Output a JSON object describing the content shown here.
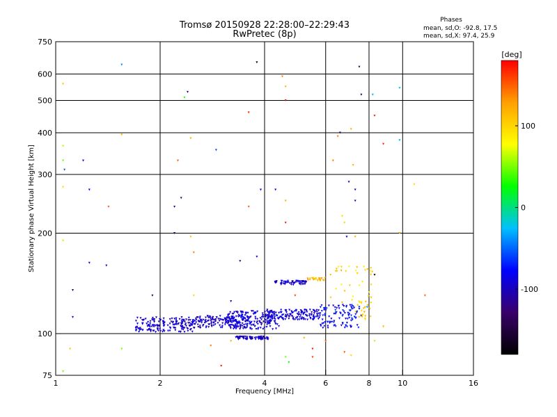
{
  "chart_data": {
    "type": "scatter",
    "title": "Tromsø 20150928 22:28:00–22:29:43",
    "subtitle": "RwPretec (8p)",
    "xlabel": "Frequency [MHz]",
    "ylabel": "Stationary phase Virtual Height [km]",
    "x_scale": "log",
    "y_scale": "log",
    "xlim": [
      1,
      16
    ],
    "ylim": [
      75,
      750
    ],
    "x_ticks": [
      1,
      2,
      4,
      6,
      8,
      10,
      16
    ],
    "x_tick_labels": [
      "1",
      "2",
      "4",
      "6",
      "8",
      "10",
      "16"
    ],
    "y_ticks": [
      75,
      100,
      200,
      300,
      400,
      500,
      600,
      750
    ],
    "y_tick_labels": [
      "75",
      "100",
      "200",
      "300",
      "400",
      "500",
      "600",
      "750"
    ],
    "grid": true,
    "stats": {
      "heading": "Phases",
      "line_o": "mean, sd,O: -92.8, 17.5",
      "line_x": "mean, sd,X:  97.4, 25.9"
    },
    "colorbar": {
      "label": "[deg]",
      "range": [
        -180,
        180
      ],
      "ticks": [
        100,
        0,
        -100
      ],
      "tick_labels": [
        "100",
        "0",
        "-100"
      ],
      "colors": [
        "#000000",
        "#3a006a",
        "#0000ff",
        "#00c0ff",
        "#00ff00",
        "#ffff00",
        "#ffa000",
        "#ff0000"
      ]
    },
    "clusters": [
      {
        "x_range": [
          1.7,
          2.5
        ],
        "y_range": [
          101,
          112
        ],
        "phase": -95,
        "count": 170
      },
      {
        "x_range": [
          2.5,
          3.6
        ],
        "y_range": [
          104,
          113
        ],
        "phase": -95,
        "count": 150
      },
      {
        "x_range": [
          3.1,
          4.4
        ],
        "y_range": [
          103,
          117
        ],
        "phase": -92,
        "count": 170
      },
      {
        "x_range": [
          4.0,
          5.8
        ],
        "y_range": [
          110,
          118
        ],
        "phase": -90,
        "count": 150
      },
      {
        "x_range": [
          5.8,
          7.6
        ],
        "y_range": [
          104,
          122
        ],
        "phase": -80,
        "count": 100
      },
      {
        "x_range": [
          3.3,
          4.1
        ],
        "y_range": [
          96,
          98
        ],
        "phase": -100,
        "count": 70
      },
      {
        "x_range": [
          4.2,
          5.3
        ],
        "y_range": [
          140,
          144
        ],
        "phase": -95,
        "count": 60
      },
      {
        "x_range": [
          5.3,
          6.0
        ],
        "y_range": [
          144,
          147
        ],
        "phase": 115,
        "count": 25
      },
      {
        "x_range": [
          6.2,
          8.2
        ],
        "y_range": [
          120,
          160
        ],
        "phase": 100,
        "count": 35
      },
      {
        "x_range": [
          7.3,
          8.1
        ],
        "y_range": [
          110,
          125
        ],
        "phase": 110,
        "count": 20
      }
    ],
    "points": [
      [
        1.05,
        560,
        110
      ],
      [
        1.05,
        365,
        60
      ],
      [
        1.05,
        330,
        45
      ],
      [
        1.06,
        310,
        -55
      ],
      [
        1.05,
        275,
        100
      ],
      [
        1.05,
        190,
        60
      ],
      [
        1.05,
        77,
        50
      ],
      [
        1.12,
        135,
        -140
      ],
      [
        1.12,
        112,
        -105
      ],
      [
        1.1,
        90,
        110
      ],
      [
        1.2,
        330,
        -80
      ],
      [
        1.25,
        270,
        -80
      ],
      [
        1.25,
        163,
        -95
      ],
      [
        1.42,
        240,
        150
      ],
      [
        1.4,
        160,
        -95
      ],
      [
        1.55,
        395,
        120
      ],
      [
        1.55,
        640,
        -40
      ],
      [
        1.55,
        90,
        50
      ],
      [
        1.9,
        130,
        -140
      ],
      [
        2.2,
        240,
        -100
      ],
      [
        2.2,
        200,
        -120
      ],
      [
        2.25,
        330,
        150
      ],
      [
        2.3,
        255,
        -120
      ],
      [
        2.35,
        510,
        30
      ],
      [
        2.4,
        530,
        -130
      ],
      [
        2.45,
        385,
        120
      ],
      [
        2.45,
        195,
        110
      ],
      [
        2.5,
        175,
        140
      ],
      [
        2.5,
        130,
        100
      ],
      [
        2.9,
        355,
        -60
      ],
      [
        3.2,
        125,
        -110
      ],
      [
        3.4,
        165,
        -120
      ],
      [
        3.6,
        460,
        170
      ],
      [
        3.6,
        240,
        150
      ],
      [
        3.8,
        650,
        -170
      ],
      [
        3.8,
        170,
        -95
      ],
      [
        3.9,
        270,
        -80
      ],
      [
        4.3,
        270,
        -90
      ],
      [
        4.5,
        590,
        140
      ],
      [
        4.6,
        550,
        120
      ],
      [
        4.6,
        500,
        170
      ],
      [
        4.6,
        250,
        120
      ],
      [
        4.6,
        215,
        170
      ],
      [
        4.6,
        85,
        50
      ],
      [
        4.7,
        82,
        20
      ],
      [
        5.5,
        90,
        175
      ],
      [
        5.5,
        85,
        160
      ],
      [
        6.0,
        95,
        150
      ],
      [
        6.3,
        330,
        140
      ],
      [
        6.5,
        390,
        140
      ],
      [
        6.6,
        400,
        -130
      ],
      [
        6.7,
        225,
        100
      ],
      [
        6.8,
        215,
        100
      ],
      [
        6.9,
        195,
        -80
      ],
      [
        7.0,
        285,
        -100
      ],
      [
        7.1,
        410,
        120
      ],
      [
        7.2,
        320,
        120
      ],
      [
        7.3,
        270,
        -110
      ],
      [
        7.3,
        250,
        -110
      ],
      [
        7.3,
        195,
        120
      ],
      [
        7.5,
        630,
        -140
      ],
      [
        7.6,
        520,
        -140
      ],
      [
        7.8,
        155,
        100
      ],
      [
        7.9,
        120,
        -40
      ],
      [
        8.2,
        520,
        -30
      ],
      [
        8.3,
        450,
        170
      ],
      [
        8.3,
        150,
        -160
      ],
      [
        8.3,
        95,
        60
      ],
      [
        8.8,
        370,
        170
      ],
      [
        8.8,
        105,
        120
      ],
      [
        9.8,
        380,
        -30
      ],
      [
        9.8,
        545,
        -20
      ],
      [
        9.8,
        200,
        120
      ],
      [
        10.8,
        280,
        100
      ],
      [
        11.6,
        130,
        150
      ],
      [
        6.8,
        88,
        150
      ],
      [
        7.1,
        86,
        100
      ],
      [
        5.2,
        97,
        120
      ],
      [
        5.8,
        120,
        -80
      ],
      [
        3.0,
        80,
        170
      ],
      [
        2.8,
        92,
        140
      ],
      [
        3.2,
        95,
        120
      ],
      [
        4.9,
        130,
        160
      ],
      [
        6.2,
        150,
        110
      ]
    ]
  }
}
